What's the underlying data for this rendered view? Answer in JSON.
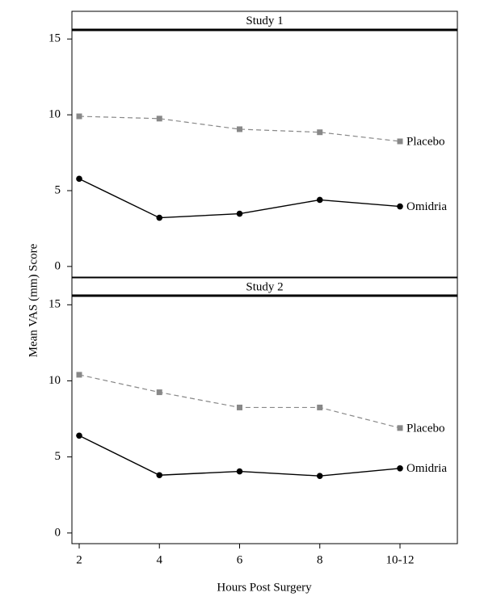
{
  "chart_data": [
    {
      "type": "line",
      "title": "Study 1",
      "ylabel": "Mean VAS (mm) Score",
      "ylim": [
        -0.7,
        15.6
      ],
      "yticks": [
        0,
        5,
        10,
        15
      ],
      "series": [
        {
          "name": "Placebo",
          "color": "#888888",
          "line_style": "dashed",
          "marker": "square",
          "values": [
            9.9,
            9.75,
            9.05,
            8.85,
            8.25
          ]
        },
        {
          "name": "Omidria",
          "color": "#000000",
          "line_style": "solid",
          "marker": "circle",
          "values": [
            5.78,
            3.21,
            3.48,
            4.39,
            3.96
          ]
        }
      ]
    },
    {
      "type": "line",
      "title": "Study 2",
      "xlabel": "Hours Post Surgery",
      "categories": [
        "2",
        "4",
        "6",
        "8",
        "10-12"
      ],
      "ylim": [
        -0.7,
        15.6
      ],
      "yticks": [
        0,
        5,
        10,
        15
      ],
      "series": [
        {
          "name": "Placebo",
          "color": "#888888",
          "line_style": "dashed",
          "marker": "square",
          "values": [
            10.4,
            9.25,
            8.25,
            8.25,
            6.9
          ]
        },
        {
          "name": "Omidria",
          "color": "#000000",
          "line_style": "solid",
          "marker": "circle",
          "values": [
            6.4,
            3.8,
            4.05,
            3.75,
            4.25
          ]
        }
      ]
    }
  ]
}
